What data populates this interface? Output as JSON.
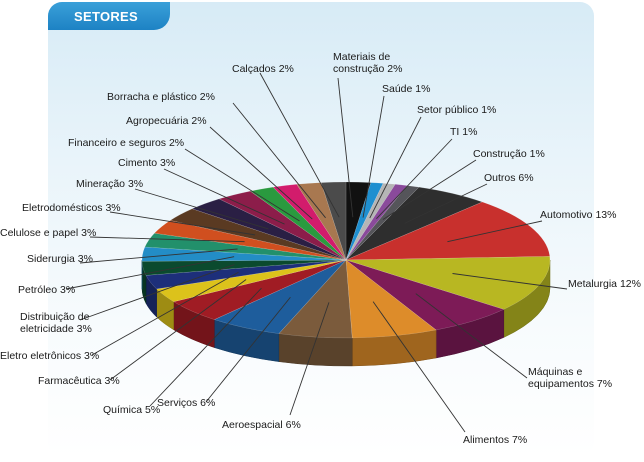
{
  "header": {
    "title": "SETORES"
  },
  "chart_data": {
    "type": "pie",
    "title": "SETORES",
    "slices": [
      {
        "label": "Materiais de construção",
        "value": 2,
        "color": "#111111",
        "label_lines": [
          "Materiais de",
          "construção 2%"
        ]
      },
      {
        "label": "Saúde",
        "value": 1,
        "color": "#1e8fd0",
        "label_lines": [
          "Saúde 1%"
        ]
      },
      {
        "label": "Setor público",
        "value": 1,
        "color": "#b5b5b5",
        "label_lines": [
          "Setor público 1%"
        ]
      },
      {
        "label": "TI",
        "value": 1,
        "color": "#8a4a9b",
        "label_lines": [
          "TI 1%"
        ]
      },
      {
        "label": "Construção",
        "value": 1,
        "color": "#55555a",
        "label_lines": [
          "Construção 1%"
        ]
      },
      {
        "label": "Outros",
        "value": 6,
        "color": "#2e2e2e",
        "label_lines": [
          "Outros 6%"
        ]
      },
      {
        "label": "Automotivo",
        "value": 13,
        "color": "#c8302d",
        "label_lines": [
          "Automotivo 13%"
        ]
      },
      {
        "label": "Metalurgia",
        "value": 12,
        "color": "#b8b722",
        "label_lines": [
          "Metalurgia 12%"
        ]
      },
      {
        "label": "Máquinas e equipamentos",
        "value": 7,
        "color": "#7d1b57",
        "label_lines": [
          "Máquinas e",
          "equipamentos  7%"
        ]
      },
      {
        "label": "Alimentos",
        "value": 7,
        "color": "#dd8c2a",
        "label_lines": [
          "Alimentos 7%"
        ]
      },
      {
        "label": "Aeroespacial",
        "value": 6,
        "color": "#7b5b3c",
        "label_lines": [
          "Aeroespacial 6%"
        ]
      },
      {
        "label": "Serviços",
        "value": 6,
        "color": "#1e5d9c",
        "label_lines": [
          "Serviços 6%"
        ]
      },
      {
        "label": "Química",
        "value": 5,
        "color": "#a01c24",
        "label_lines": [
          "Química 5%"
        ]
      },
      {
        "label": "Farmacêutica",
        "value": 3,
        "color": "#dcc21b",
        "label_lines": [
          "Farmacêutica 3%"
        ]
      },
      {
        "label": "Eletro eletrônicos",
        "value": 3,
        "color": "#1d2f7a",
        "label_lines": [
          "Eletro eletrônicos 3%"
        ]
      },
      {
        "label": "Distribuição de eletricidade",
        "value": 3,
        "color": "#0b4a2e",
        "label_lines": [
          "Distribuição de",
          "eletricidade 3%"
        ]
      },
      {
        "label": "Petróleo",
        "value": 3,
        "color": "#238dc6",
        "label_lines": [
          "Petróleo 3%"
        ]
      },
      {
        "label": "Siderurgia",
        "value": 3,
        "color": "#22906b",
        "label_lines": [
          "Siderurgia 3%"
        ]
      },
      {
        "label": "Celulose e papel",
        "value": 3,
        "color": "#d04f1f",
        "label_lines": [
          "Celulose e papel 3%"
        ]
      },
      {
        "label": "Eletrodomésticos",
        "value": 3,
        "color": "#5a3a22",
        "label_lines": [
          "Eletrodomésticos 3%"
        ]
      },
      {
        "label": "Mineração",
        "value": 3,
        "color": "#2a1f44",
        "label_lines": [
          "Mineração 3%"
        ]
      },
      {
        "label": "Cimento",
        "value": 3,
        "color": "#8c1d4a",
        "label_lines": [
          "Cimento 3%"
        ]
      },
      {
        "label": "Financeiro e seguros",
        "value": 2,
        "color": "#2a9a3f",
        "label_lines": [
          "Financeiro e seguros 2%"
        ]
      },
      {
        "label": "Agropecuária",
        "value": 2,
        "color": "#d21c6c",
        "label_lines": [
          "Agropecuária 2%"
        ]
      },
      {
        "label": "Borracha e plástico",
        "value": 2,
        "color": "#a87850",
        "label_lines": [
          "Borracha e plástico 2%"
        ]
      },
      {
        "label": "Calçados",
        "value": 2,
        "color": "#4b4b4b",
        "label_lines": [
          "Calçados 2%"
        ]
      }
    ]
  }
}
